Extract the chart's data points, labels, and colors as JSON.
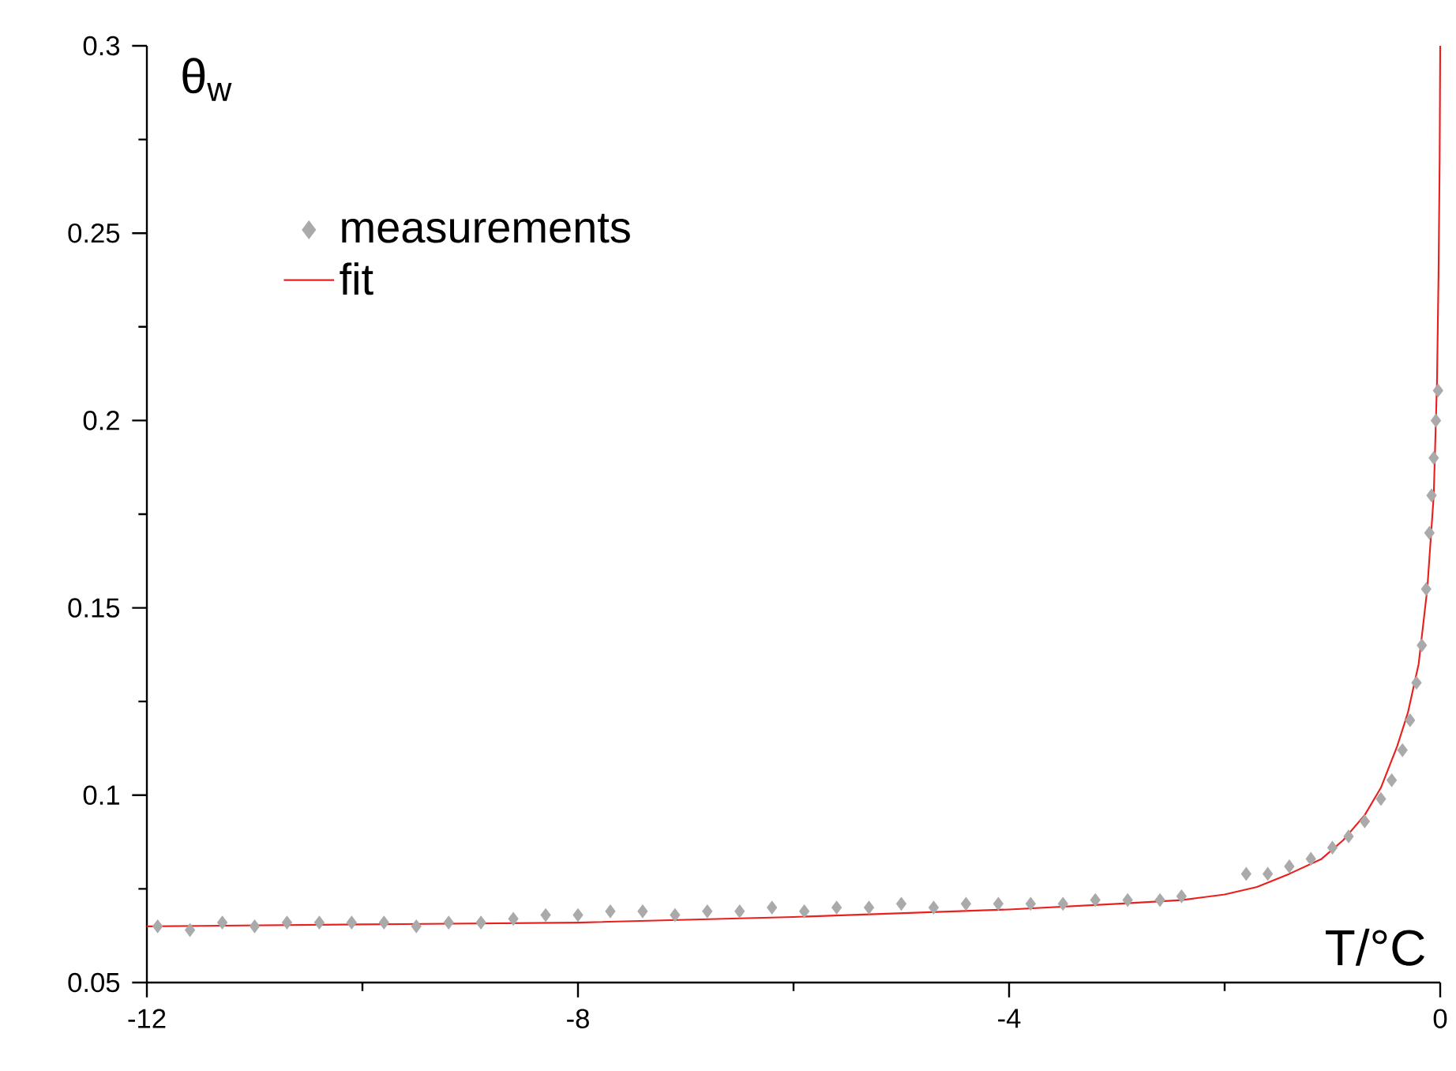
{
  "chart_data": {
    "type": "scatter",
    "xlabel": "T/°C",
    "ylabel": "θ$_{w}$",
    "xlim": [
      -12,
      0
    ],
    "ylim": [
      0.05,
      0.3
    ],
    "xticks": [
      -12,
      {
        "value": -10,
        "label": null
      },
      -8,
      {
        "value": -6,
        "label": null
      },
      -4,
      {
        "value": -2,
        "label": null
      },
      0
    ],
    "yticks": [
      0.05,
      {
        "value": 0.075,
        "label": null
      },
      0.1,
      {
        "value": 0.125,
        "label": null
      },
      0.15,
      {
        "value": 0.175,
        "label": null
      },
      0.2,
      {
        "value": 0.225,
        "label": null
      },
      0.25,
      {
        "value": 0.275,
        "label": null
      },
      0.3
    ],
    "grid": false,
    "legend": "top left",
    "series": [
      {
        "name": "measurements",
        "marker": "diamond",
        "color": "#aaaaaa",
        "x": [
          -11.9,
          -11.6,
          -11.3,
          -11.0,
          -10.7,
          -10.4,
          -10.1,
          -9.8,
          -9.5,
          -9.2,
          -8.9,
          -8.6,
          -8.3,
          -8.0,
          -7.7,
          -7.4,
          -7.1,
          -6.8,
          -6.5,
          -6.2,
          -5.9,
          -5.6,
          -5.3,
          -5.0,
          -4.7,
          -4.4,
          -4.1,
          -3.8,
          -3.5,
          -3.2,
          -2.9,
          -2.6,
          -2.4,
          -1.8,
          -1.6,
          -1.4,
          -1.2,
          -1.0,
          -0.85,
          -0.7,
          -0.55,
          -0.45,
          -0.35,
          -0.28,
          -0.22,
          -0.17,
          -0.13,
          -0.1,
          -0.08,
          -0.06,
          -0.04,
          -0.02
        ],
        "values": [
          0.065,
          0.064,
          0.066,
          0.065,
          0.066,
          0.066,
          0.066,
          0.066,
          0.065,
          0.066,
          0.066,
          0.067,
          0.068,
          0.068,
          0.069,
          0.069,
          0.068,
          0.069,
          0.069,
          0.07,
          0.069,
          0.07,
          0.07,
          0.071,
          0.07,
          0.071,
          0.071,
          0.071,
          0.071,
          0.072,
          0.072,
          0.072,
          0.073,
          0.079,
          0.079,
          0.081,
          0.083,
          0.086,
          0.089,
          0.093,
          0.099,
          0.104,
          0.112,
          0.12,
          0.13,
          0.14,
          0.155,
          0.17,
          0.18,
          0.19,
          0.2,
          0.208
        ]
      },
      {
        "name": "fit",
        "type": "line",
        "marker": "none",
        "line_style": "solid",
        "color": "#e8201e",
        "x": [
          -12,
          -10,
          -8,
          -6,
          -4,
          -3,
          -2.4,
          -2.0,
          -1.7,
          -1.4,
          -1.1,
          -0.9,
          -0.7,
          -0.55,
          -0.4,
          -0.3,
          -0.2,
          -0.12,
          -0.06,
          -0.03,
          -0.015,
          -0.005,
          0
        ],
        "values": [
          0.065,
          0.0655,
          0.066,
          0.0675,
          0.0695,
          0.071,
          0.072,
          0.0735,
          0.0755,
          0.079,
          0.083,
          0.088,
          0.0947,
          0.102,
          0.113,
          0.122,
          0.135,
          0.155,
          0.18,
          0.21,
          0.24,
          0.27,
          0.3
        ]
      }
    ]
  }
}
